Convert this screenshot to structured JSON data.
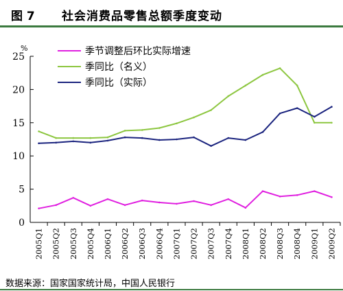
{
  "header": {
    "figure_number": "图 7",
    "title": "社会消费品零售总额季度变动"
  },
  "source": "数据来源：国家国家统计局，中国人民银行",
  "chart_data": {
    "type": "line",
    "title": "社会消费品零售总额季度变动",
    "ylabel": "",
    "yunit": "%",
    "ylim": [
      0,
      25
    ],
    "yticks": [
      0,
      5,
      10,
      15,
      20,
      25
    ],
    "grid": false,
    "legend_position": "top-left",
    "categories": [
      "2005Q1",
      "2005Q2",
      "2005Q3",
      "2005Q4",
      "2006Q1",
      "2006Q2",
      "2006Q3",
      "2006Q4",
      "2007Q1",
      "2007Q2",
      "2007Q3",
      "2007Q4",
      "2008Q1",
      "2008Q2",
      "2008Q3",
      "2008Q4",
      "2009Q1",
      "2009Q2"
    ],
    "series": [
      {
        "name": "季节调整后环比实际增速",
        "color": "#e020e0",
        "values": [
          2.1,
          2.6,
          3.7,
          2.5,
          3.5,
          2.6,
          3.3,
          3.0,
          2.8,
          3.2,
          2.6,
          3.5,
          2.2,
          4.7,
          3.9,
          4.1,
          4.7,
          3.8
        ]
      },
      {
        "name": "季同比（名义）",
        "color": "#8cc63f",
        "values": [
          13.7,
          12.7,
          12.7,
          12.7,
          12.8,
          13.8,
          13.9,
          14.2,
          14.9,
          15.8,
          16.9,
          19.0,
          20.6,
          22.2,
          23.2,
          20.6,
          15.0,
          15.0
        ]
      },
      {
        "name": "季同比（实际）",
        "color": "#1a237e",
        "values": [
          11.9,
          12.0,
          12.2,
          12.0,
          12.3,
          12.8,
          12.7,
          12.4,
          12.5,
          12.8,
          11.5,
          12.7,
          12.4,
          13.6,
          16.4,
          17.2,
          15.9,
          17.4
        ]
      }
    ]
  }
}
